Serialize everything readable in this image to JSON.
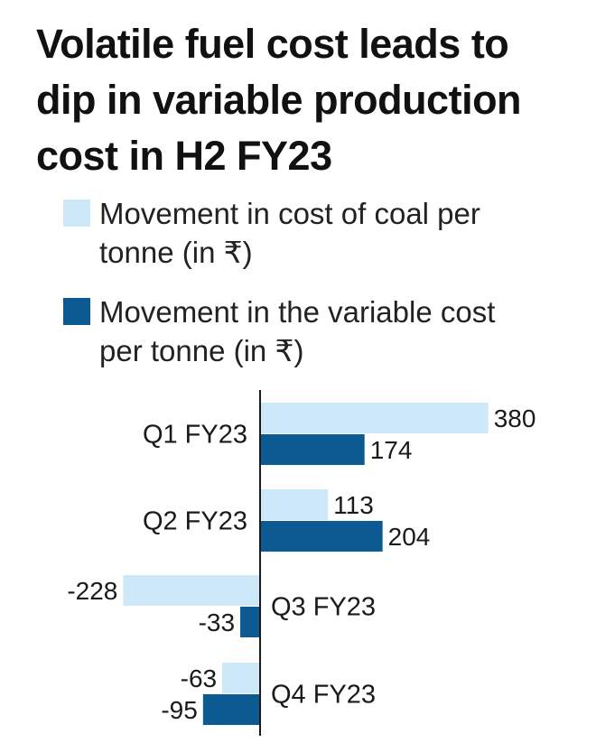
{
  "title": "Volatile fuel cost leads to dip in variable production cost in H2 FY23",
  "legend": {
    "coal": "Movement in cost of coal per tonne (in ₹)",
    "variable": "Movement in the variable cost per tonne (in ₹)"
  },
  "colors": {
    "coal": "#cde8f8",
    "variable": "#0b5a91",
    "axis": "#1a1a1a"
  },
  "chart_data": {
    "type": "bar",
    "orientation": "horizontal",
    "categories": [
      "Q1 FY23",
      "Q2 FY23",
      "Q3 FY23",
      "Q4 FY23"
    ],
    "series": [
      {
        "name": "Movement in cost of coal per tonne (in ₹)",
        "values": [
          380,
          113,
          -228,
          -63
        ]
      },
      {
        "name": "Movement in the variable cost per tonne (in ₹)",
        "values": [
          174,
          204,
          -33,
          -95
        ]
      }
    ],
    "data_labels": [
      [
        "380",
        "113",
        "-228",
        "-63"
      ],
      [
        "174",
        "204",
        "-33",
        "-95"
      ]
    ],
    "title": "Volatile fuel cost leads to dip in variable production cost in H2 FY23",
    "xlabel": "",
    "ylabel": "",
    "xlim": [
      -228,
      380
    ],
    "grid": false,
    "legend_position": "top"
  }
}
